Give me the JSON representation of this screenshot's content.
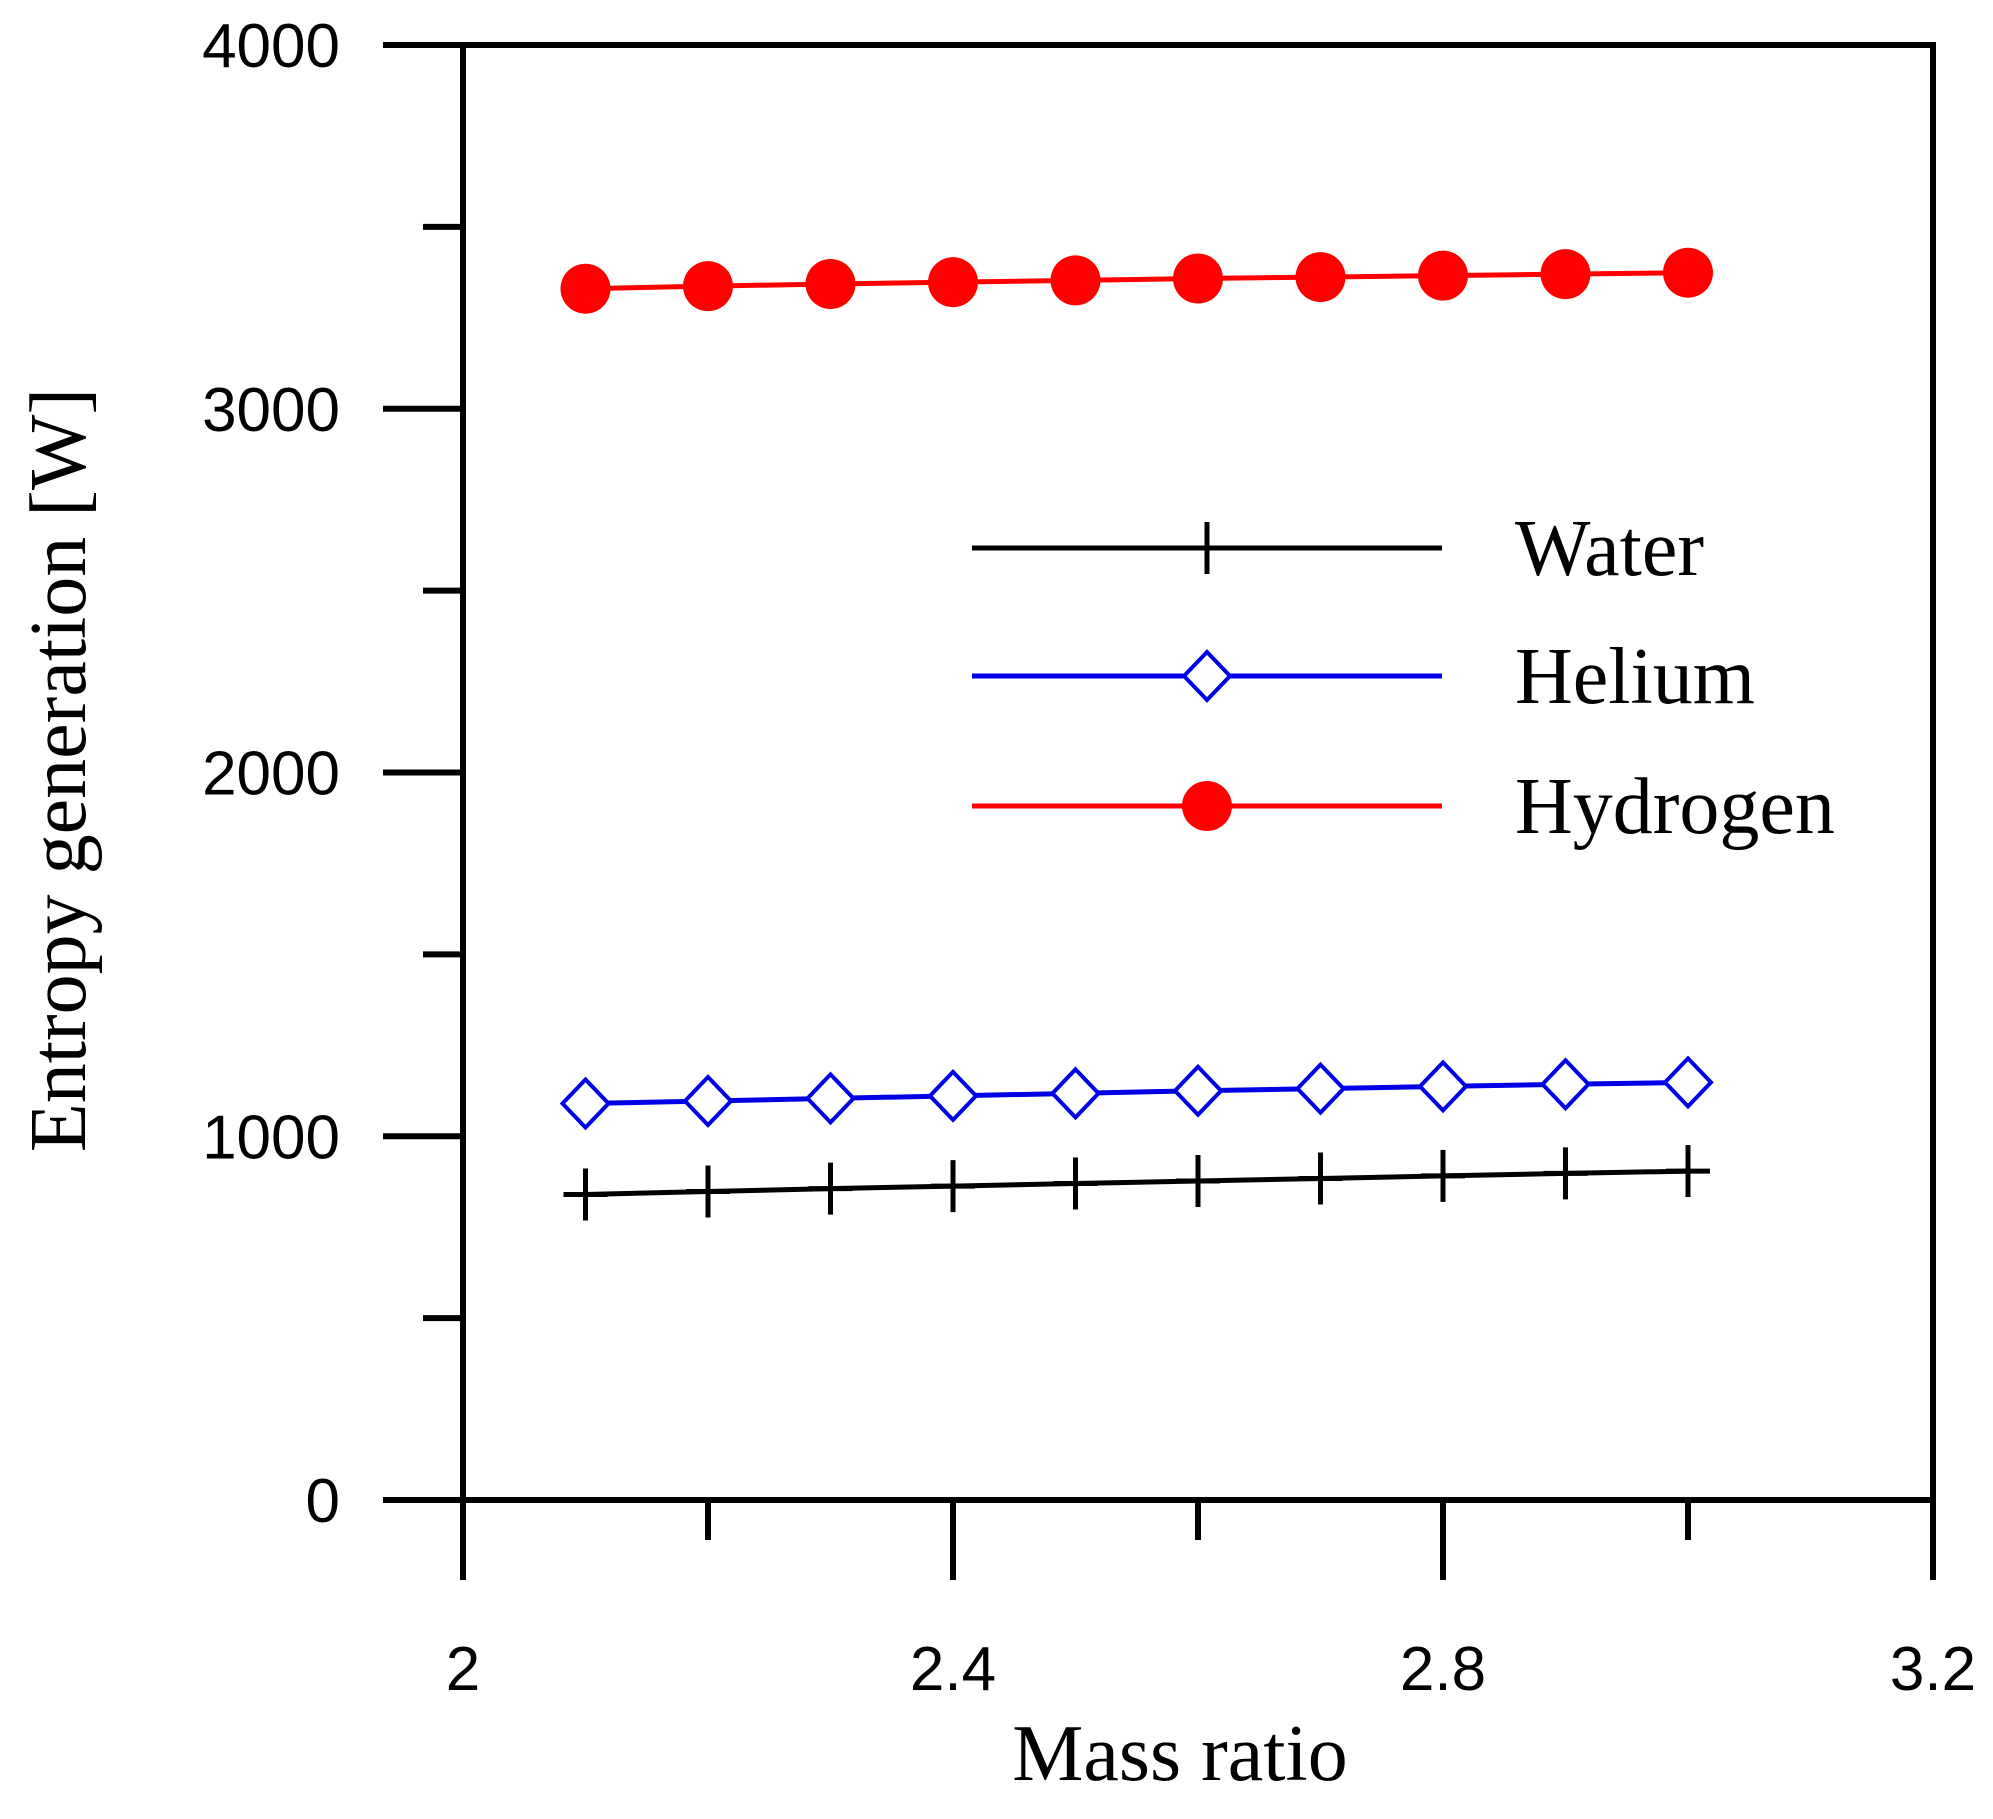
{
  "chart_data": {
    "type": "line",
    "title": "",
    "xlabel": "Mass ratio",
    "ylabel": "Entropy generation [W]",
    "xlim": [
      2,
      3.2
    ],
    "ylim": [
      0,
      4000
    ],
    "x_ticks": [
      2,
      2.4,
      2.8,
      3.2
    ],
    "x_tick_labels": [
      "2",
      "2.4",
      "2.8",
      "3.2"
    ],
    "x_minor_ticks": [
      2.2,
      2.6,
      3.0
    ],
    "y_ticks": [
      0,
      1000,
      2000,
      3000,
      4000
    ],
    "y_tick_labels": [
      "0",
      "1000",
      "2000",
      "3000",
      "4000"
    ],
    "y_minor_ticks": [
      500,
      1500,
      2500,
      3500
    ],
    "grid": false,
    "legend_position": "right",
    "x": [
      2.1,
      2.2,
      2.3,
      2.4,
      2.5,
      2.6,
      2.7,
      2.8,
      2.9,
      3.0
    ],
    "series": [
      {
        "name": "Water",
        "color": "#000000",
        "marker": "plus",
        "values": [
          840,
          848,
          856,
          863,
          870,
          877,
          884,
          891,
          898,
          904
        ]
      },
      {
        "name": "Helium",
        "color": "#0000e6",
        "marker": "diamond-open",
        "values": [
          1090,
          1097,
          1104,
          1111,
          1118,
          1125,
          1131,
          1137,
          1143,
          1148
        ]
      },
      {
        "name": "Hydrogen",
        "color": "#ff0000",
        "marker": "circle-filled",
        "values": [
          3330,
          3337,
          3343,
          3348,
          3353,
          3358,
          3362,
          3366,
          3370,
          3374
        ]
      }
    ]
  }
}
